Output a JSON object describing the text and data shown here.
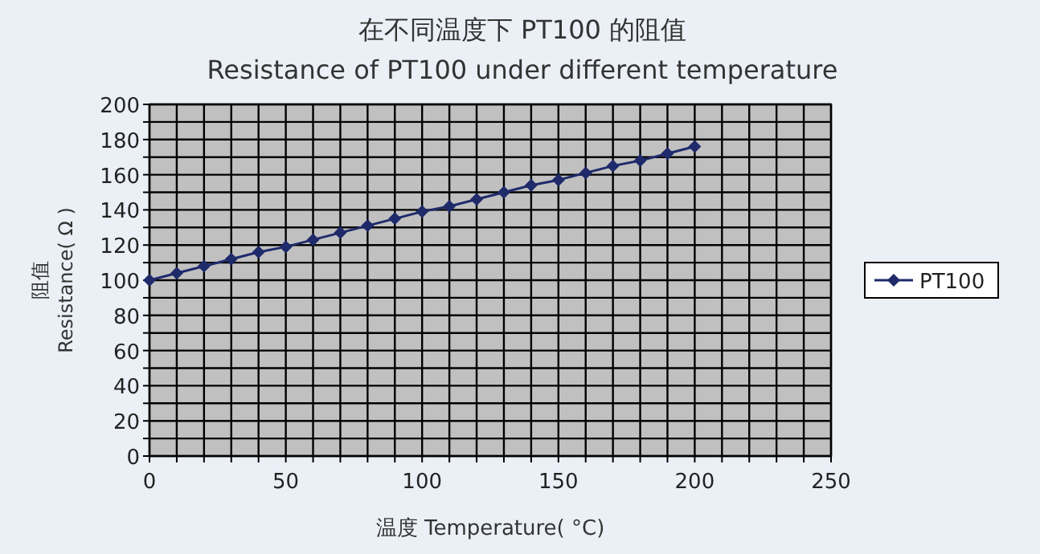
{
  "chart_data": {
    "type": "line",
    "title": "在不同温度下 PT100 的阻值",
    "subtitle": "Resistance of PT100 under different temperature",
    "xlabel": "温度 Temperature( °C)",
    "ylabel": "阻值\nResistance( Ω )",
    "x": [
      0,
      10,
      20,
      30,
      40,
      50,
      60,
      70,
      80,
      90,
      100,
      110,
      120,
      130,
      140,
      150,
      160,
      170,
      180,
      190,
      200
    ],
    "series": [
      {
        "name": "PT100",
        "color": "#1f2a6b",
        "values": [
          100,
          104,
          108,
          112,
          116,
          119,
          123,
          127,
          131,
          135,
          139,
          142,
          146,
          150,
          154,
          157,
          161,
          165,
          168,
          172,
          176
        ]
      }
    ],
    "xlim": [
      0,
      250
    ],
    "ylim": [
      0,
      200
    ],
    "xticks": [
      0,
      {
        "value": 10,
        "label": null
      },
      {
        "value": 20,
        "label": null
      },
      {
        "value": 30,
        "label": null
      },
      {
        "value": 40,
        "label": null
      },
      50,
      {
        "value": 60,
        "label": null
      },
      {
        "value": 70,
        "label": null
      },
      {
        "value": 80,
        "label": null
      },
      {
        "value": 90,
        "label": null
      },
      100,
      {
        "value": 110,
        "label": null
      },
      {
        "value": 120,
        "label": null
      },
      {
        "value": 130,
        "label": null
      },
      {
        "value": 140,
        "label": null
      },
      150,
      {
        "value": 160,
        "label": null
      },
      {
        "value": 170,
        "label": null
      },
      {
        "value": 180,
        "label": null
      },
      {
        "value": 190,
        "label": null
      },
      200,
      {
        "value": 210,
        "label": null
      },
      {
        "value": 220,
        "label": null
      },
      {
        "value": 230,
        "label": null
      },
      {
        "value": 240,
        "label": null
      },
      250
    ],
    "yticks": [
      0,
      {
        "value": 10,
        "label": null
      },
      20,
      {
        "value": 30,
        "label": null
      },
      40,
      {
        "value": 50,
        "label": null
      },
      60,
      {
        "value": 70,
        "label": null
      },
      80,
      {
        "value": 90,
        "label": null
      },
      100,
      {
        "value": 110,
        "label": null
      },
      120,
      {
        "value": 130,
        "label": null
      },
      140,
      {
        "value": 150,
        "label": null
      },
      160,
      {
        "value": 170,
        "label": null
      },
      180,
      {
        "value": 190,
        "label": null
      },
      200
    ],
    "grid": true,
    "legend": "right",
    "marker": "diamond",
    "line_style": "solid"
  }
}
